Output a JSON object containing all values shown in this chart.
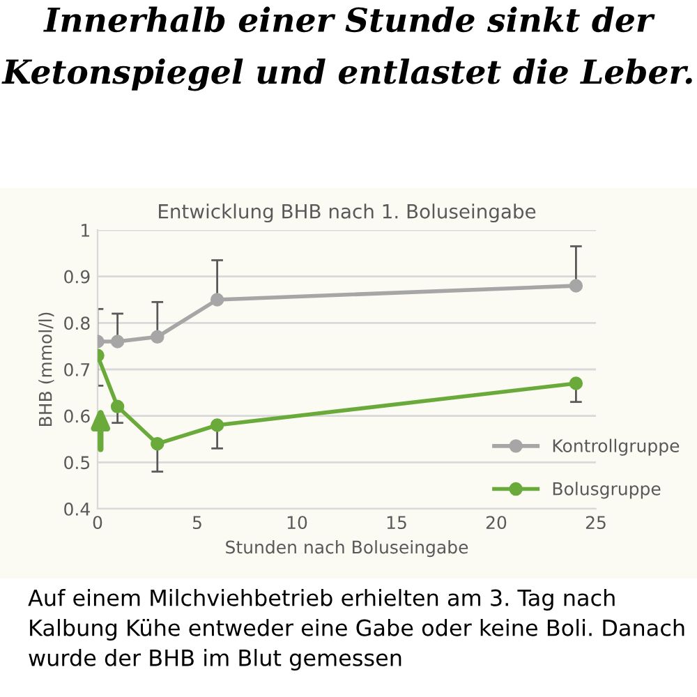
{
  "chart_data": {
    "type": "line",
    "title": "Innerhalb einer Stunde sinkt der Ketonspiegel und entlastet die Leber.",
    "subtitle": "Entwicklung BHB nach 1. Boluseingabe",
    "xlabel": "Stunden nach Boluseingabe",
    "ylabel": "BHB (mmol/l)",
    "x": [
      0,
      1,
      3,
      6,
      24
    ],
    "series": [
      {
        "name": "Kontrollgruppe",
        "color": "#a6a6a6",
        "values": [
          0.76,
          0.76,
          0.77,
          0.85,
          0.88
        ],
        "errors": [
          [
            0.76,
            0.83
          ],
          [
            0.76,
            0.82
          ],
          [
            0.77,
            0.845
          ],
          [
            0.85,
            0.935
          ],
          [
            0.88,
            0.965
          ]
        ]
      },
      {
        "name": "Bolusgruppe",
        "color": "#6aaa3a",
        "values": [
          0.73,
          0.62,
          0.54,
          0.58,
          0.67
        ],
        "errors": [
          [
            0.665,
            0.73
          ],
          [
            0.585,
            0.62
          ],
          [
            0.48,
            0.54
          ],
          [
            0.53,
            0.58
          ],
          [
            0.63,
            0.67
          ]
        ]
      }
    ],
    "xlim": [
      0,
      25
    ],
    "xticks": [
      0,
      5,
      10,
      15,
      20,
      25
    ],
    "ylim": [
      0.4,
      1
    ],
    "yticks": [
      0.4,
      0.5,
      0.6,
      0.7,
      0.8,
      0.9,
      {
        "value": 1,
        "label": "1"
      }
    ],
    "grid": "y",
    "legend": "bottom right",
    "marker": "circle",
    "line_style": "solid",
    "annotations": [
      "Auf einem Milchviehbetrieb erhielten am 3. Tag nach Kalbung Kühe entweder eine Gabe oder keine Boli. Danach wurde der BHB im Blut gemessen"
    ]
  }
}
